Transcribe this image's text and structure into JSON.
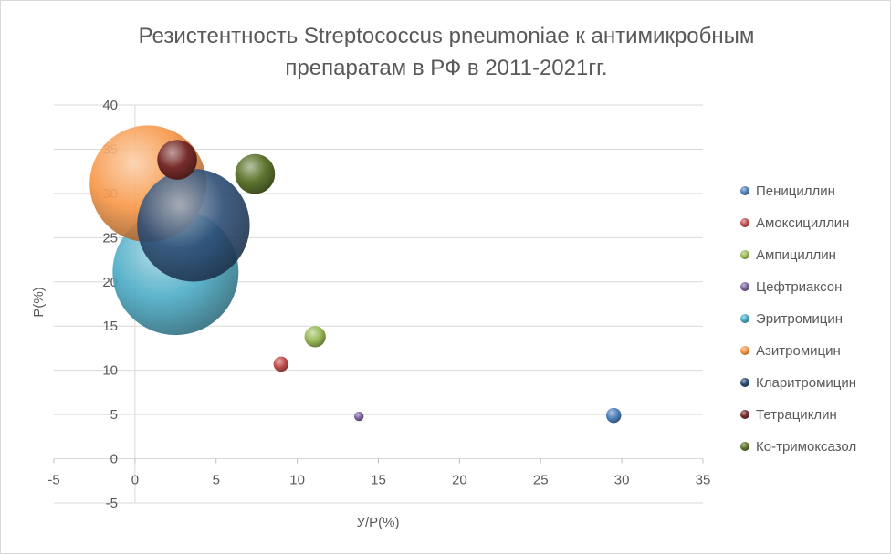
{
  "chart_data": {
    "type": "bubble",
    "title_lines": [
      "Резистентность Streptococcus pneumoniae к антимикробным",
      "препаратам в РФ в 2011-2021гг."
    ],
    "xlabel": "У/Р(%)",
    "ylabel": "Р(%)",
    "xlim": [
      -5,
      35
    ],
    "ylim": [
      -5,
      40
    ],
    "x_ticks": [
      "-5",
      "0",
      "5",
      "10",
      "15",
      "20",
      "25",
      "30",
      "35"
    ],
    "y_ticks": [
      "40",
      "35",
      "30",
      "25",
      "20",
      "15",
      "10",
      "5",
      "0",
      "-5"
    ],
    "grid": true,
    "legend_position": "right",
    "series": [
      {
        "name": "Пенициллин",
        "x": 29.5,
        "y": 4.9,
        "size": 0.5,
        "color": "#4f81bd"
      },
      {
        "name": "Амоксициллин",
        "x": 9.0,
        "y": 10.7,
        "size": 0.5,
        "color": "#c0504d"
      },
      {
        "name": "Ампициллин",
        "x": 11.1,
        "y": 13.8,
        "size": 1.0,
        "color": "#9bbb59"
      },
      {
        "name": "Цефтриаксон",
        "x": 13.8,
        "y": 4.8,
        "size": 0.2,
        "color": "#8064a2"
      },
      {
        "name": "Эритромицин",
        "x": 2.5,
        "y": 21.1,
        "size": 35,
        "color": "#4bacc6"
      },
      {
        "name": "Азитромицин",
        "x": 0.8,
        "y": 31.1,
        "size": 30,
        "color": "#f79646"
      },
      {
        "name": "Кларитромицин",
        "x": 3.6,
        "y": 26.4,
        "size": 28,
        "color": "#2c4d75"
      },
      {
        "name": "Тетрациклин",
        "x": 2.6,
        "y": 33.8,
        "size": 3.5,
        "color": "#772c2a"
      },
      {
        "name": "Ко-тримоксазол",
        "x": 7.4,
        "y": 32.2,
        "size": 3.5,
        "color": "#5f7530"
      }
    ]
  }
}
